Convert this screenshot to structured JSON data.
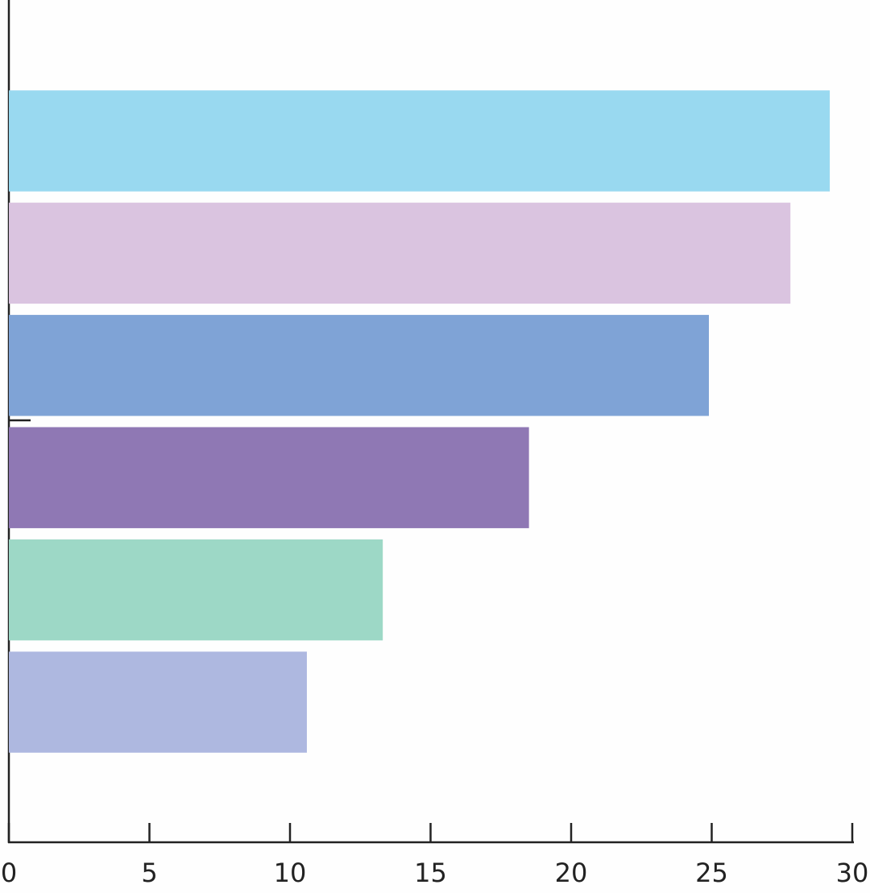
{
  "chart_data": {
    "type": "bar",
    "orientation": "horizontal",
    "categories": [
      null,
      null,
      null,
      null,
      null,
      null
    ],
    "values": [
      29.2,
      27.8,
      24.9,
      18.5,
      13.3,
      10.6
    ],
    "colors": [
      "#99d9f0",
      "#dac4e0",
      "#7fa3d6",
      "#8f78b4",
      "#9dd8c6",
      "#aeb8e0"
    ],
    "xlim": [
      0,
      30
    ],
    "xticks": [
      0,
      5,
      10,
      15,
      20,
      25,
      30
    ]
  }
}
